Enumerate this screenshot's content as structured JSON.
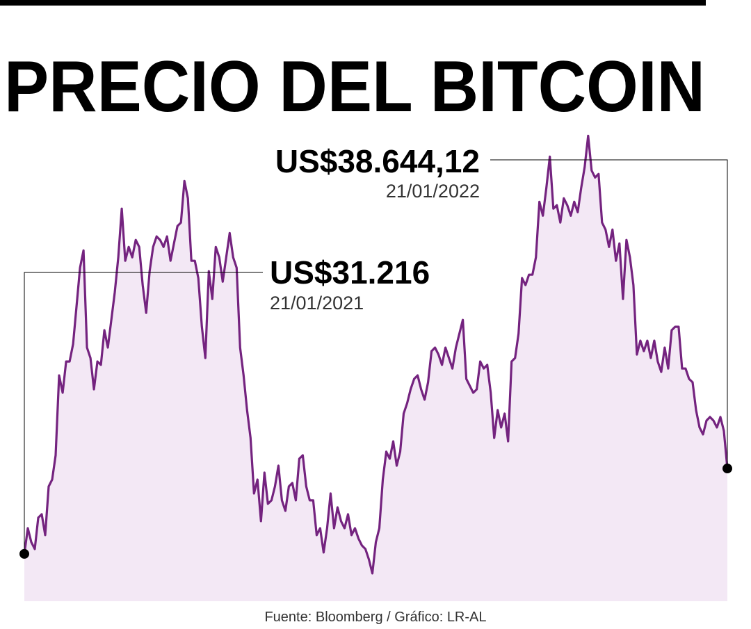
{
  "chart_data": {
    "type": "line",
    "title": "PRECIO DEL BITCOIN",
    "source": "Fuente: Bloomberg / Gráfico: LR-AL",
    "color": "#74237f",
    "fill_color": "#f3e8f5",
    "ylim": [
      27100,
      67600
    ],
    "annotations": [
      {
        "value_label": "US$31.216",
        "date": "21/01/2021"
      },
      {
        "value_label": "US$38.644,12",
        "date": "21/01/2022"
      }
    ],
    "values": [
      31216,
      33450,
      32240,
      31640,
      34360,
      34660,
      32850,
      37080,
      37680,
      39790,
      46740,
      45230,
      47950,
      47950,
      49460,
      52780,
      56100,
      57610,
      49160,
      48250,
      45530,
      47950,
      47650,
      50670,
      49160,
      51570,
      53990,
      57010,
      61240,
      56710,
      57910,
      57010,
      58520,
      57910,
      54590,
      52180,
      55800,
      57910,
      58820,
      58520,
      57910,
      58820,
      56710,
      58220,
      59730,
      60030,
      63650,
      62140,
      56710,
      56710,
      55200,
      50970,
      48250,
      55800,
      53380,
      57910,
      57010,
      54890,
      57010,
      59120,
      57010,
      56100,
      49160,
      46740,
      43720,
      41300,
      36470,
      37680,
      34060,
      38280,
      35570,
      35870,
      37080,
      38890,
      35870,
      34960,
      37080,
      37380,
      35870,
      39490,
      39790,
      37080,
      35870,
      35870,
      32850,
      33450,
      31340,
      33450,
      36470,
      33450,
      35260,
      34060,
      33450,
      34660,
      32850,
      33450,
      32550,
      31940,
      31640,
      30730,
      29520,
      32240,
      33450,
      37680,
      40100,
      39490,
      41000,
      38890,
      40100,
      43420,
      44320,
      45530,
      46440,
      46740,
      45530,
      44630,
      46140,
      48850,
      49160,
      48550,
      47650,
      49160,
      48250,
      47340,
      49160,
      50360,
      51570,
      46440,
      45830,
      45230,
      45530,
      47950,
      47340,
      47650,
      45230,
      41300,
      43720,
      42210,
      43420,
      41000,
      47950,
      48250,
      50360,
      55200,
      54590,
      55500,
      55500,
      57010,
      61840,
      60630,
      63050,
      65770,
      61240,
      61540,
      60030,
      62140,
      61540,
      60630,
      61840,
      60930,
      63050,
      64860,
      67580,
      64560,
      63950,
      64260,
      60030,
      59420,
      57910,
      59420,
      56710,
      58220,
      53380,
      58520,
      57010,
      54590,
      48550,
      49760,
      48850,
      49760,
      48250,
      49760,
      47950,
      47040,
      49160,
      47340,
      50670,
      50970,
      50970,
      47340,
      47340,
      46440,
      46140,
      43720,
      42210,
      41610,
      42810,
      43120,
      42810,
      42210,
      43120,
      41910,
      38644.12
    ]
  }
}
